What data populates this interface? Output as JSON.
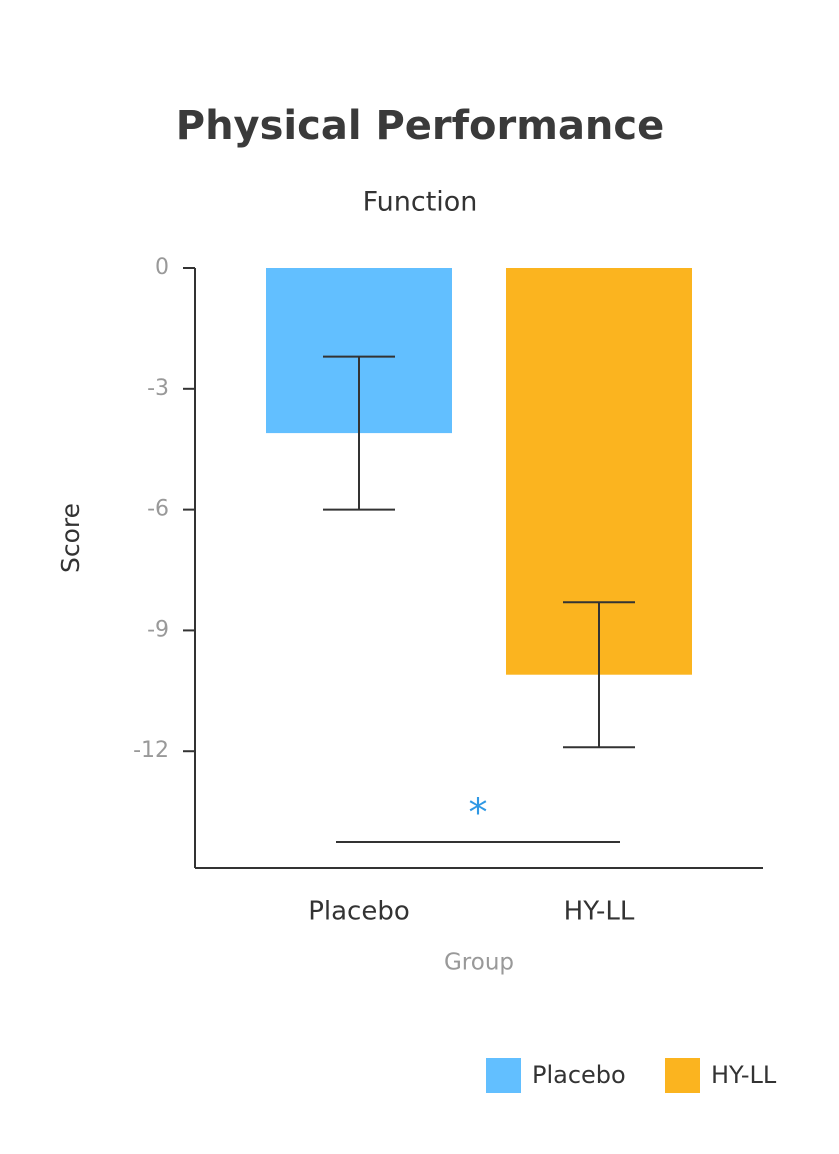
{
  "chart_data": {
    "type": "bar",
    "title": "Physical Performance",
    "subtitle": "Function",
    "x_label": "Group",
    "y_label": "Score",
    "categories": [
      "Placebo",
      "HY-LL"
    ],
    "values": [
      -4.1,
      -10.1
    ],
    "errors": [
      1.9,
      1.8
    ],
    "colors": [
      "#62bfff",
      "#fbb41f"
    ],
    "ylim": [
      -14.9,
      0
    ],
    "yticks": [
      0,
      -3,
      -6,
      -9,
      -12
    ],
    "annotation": "*",
    "legend": "bottom-right"
  }
}
